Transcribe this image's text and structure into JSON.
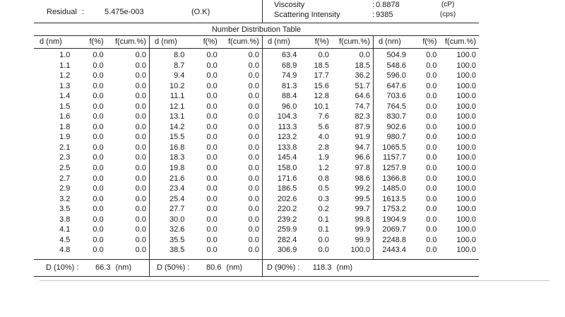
{
  "top": {
    "residual": {
      "label": "Residual",
      "colon": ":",
      "value": "5.475e-003",
      "status": "(O.K)"
    },
    "viscosity": {
      "label": "Viscosity",
      "colon": ":",
      "value": "0.8878",
      "unit": "(cP)"
    },
    "scattering": {
      "label": "Scattering Intensity",
      "colon": ":",
      "value": "9385",
      "unit": "(cps)"
    }
  },
  "table": {
    "title": "Number Distribution Table",
    "column_headers": [
      "d (nm)",
      "f(%)",
      "f(cum.%)"
    ],
    "groups": [
      {
        "rows": [
          [
            "1.0",
            "0.0",
            "0.0"
          ],
          [
            "1.1",
            "0.0",
            "0.0"
          ],
          [
            "1.2",
            "0.0",
            "0.0"
          ],
          [
            "1.3",
            "0.0",
            "0.0"
          ],
          [
            "1.4",
            "0.0",
            "0.0"
          ],
          [
            "1.5",
            "0.0",
            "0.0"
          ],
          [
            "1.6",
            "0.0",
            "0.0"
          ],
          [
            "1.8",
            "0.0",
            "0.0"
          ],
          [
            "1.9",
            "0.0",
            "0.0"
          ],
          [
            "2.1",
            "0.0",
            "0.0"
          ],
          [
            "2.3",
            "0.0",
            "0.0"
          ],
          [
            "2.5",
            "0.0",
            "0.0"
          ],
          [
            "2.7",
            "0.0",
            "0.0"
          ],
          [
            "2.9",
            "0.0",
            "0.0"
          ],
          [
            "3.2",
            "0.0",
            "0.0"
          ],
          [
            "3.5",
            "0.0",
            "0.0"
          ],
          [
            "3.8",
            "0.0",
            "0.0"
          ],
          [
            "4.1",
            "0.0",
            "0.0"
          ],
          [
            "4.5",
            "0.0",
            "0.0"
          ],
          [
            "4.8",
            "0.0",
            "0.0"
          ]
        ]
      },
      {
        "rows": [
          [
            "8.0",
            "0.0",
            "0.0"
          ],
          [
            "8.7",
            "0.0",
            "0.0"
          ],
          [
            "9.4",
            "0.0",
            "0.0"
          ],
          [
            "10.2",
            "0.0",
            "0.0"
          ],
          [
            "11.1",
            "0.0",
            "0.0"
          ],
          [
            "12.1",
            "0.0",
            "0.0"
          ],
          [
            "13.1",
            "0.0",
            "0.0"
          ],
          [
            "14.2",
            "0.0",
            "0.0"
          ],
          [
            "15.5",
            "0.0",
            "0.0"
          ],
          [
            "16.8",
            "0.0",
            "0.0"
          ],
          [
            "18.3",
            "0.0",
            "0.0"
          ],
          [
            "19.8",
            "0.0",
            "0.0"
          ],
          [
            "21.6",
            "0.0",
            "0.0"
          ],
          [
            "23.4",
            "0.0",
            "0.0"
          ],
          [
            "25.4",
            "0.0",
            "0.0"
          ],
          [
            "27.7",
            "0.0",
            "0.0"
          ],
          [
            "30.0",
            "0.0",
            "0.0"
          ],
          [
            "32.6",
            "0.0",
            "0.0"
          ],
          [
            "35.5",
            "0.0",
            "0.0"
          ],
          [
            "38.5",
            "0.0",
            "0.0"
          ]
        ]
      },
      {
        "rows": [
          [
            "63.4",
            "0.0",
            "0.0"
          ],
          [
            "68.9",
            "18.5",
            "18.5"
          ],
          [
            "74.9",
            "17.7",
            "36.2"
          ],
          [
            "81.3",
            "15.6",
            "51.7"
          ],
          [
            "88.4",
            "12.8",
            "64.6"
          ],
          [
            "96.0",
            "10.1",
            "74.7"
          ],
          [
            "104.3",
            "7.6",
            "82.3"
          ],
          [
            "113.3",
            "5.6",
            "87.9"
          ],
          [
            "123.2",
            "4.0",
            "91.9"
          ],
          [
            "133.8",
            "2.8",
            "94.7"
          ],
          [
            "145.4",
            "1.9",
            "96.6"
          ],
          [
            "158.0",
            "1.2",
            "97.8"
          ],
          [
            "171.6",
            "0.8",
            "98.6"
          ],
          [
            "186.5",
            "0.5",
            "99.2"
          ],
          [
            "202.6",
            "0.3",
            "99.5"
          ],
          [
            "220.2",
            "0.2",
            "99.7"
          ],
          [
            "239.2",
            "0.1",
            "99.8"
          ],
          [
            "259.9",
            "0.1",
            "99.9"
          ],
          [
            "282.4",
            "0.0",
            "99.9"
          ],
          [
            "306.9",
            "0.0",
            "100.0"
          ]
        ]
      },
      {
        "rows": [
          [
            "504.9",
            "0.0",
            "100.0"
          ],
          [
            "548.6",
            "0.0",
            "100.0"
          ],
          [
            "596.0",
            "0.0",
            "100.0"
          ],
          [
            "647.6",
            "0.0",
            "100.0"
          ],
          [
            "703.6",
            "0.0",
            "100.0"
          ],
          [
            "764.5",
            "0.0",
            "100.0"
          ],
          [
            "830.7",
            "0.0",
            "100.0"
          ],
          [
            "902.6",
            "0.0",
            "100.0"
          ],
          [
            "980.7",
            "0.0",
            "100.0"
          ],
          [
            "1065.5",
            "0.0",
            "100.0"
          ],
          [
            "1157.7",
            "0.0",
            "100.0"
          ],
          [
            "1257.9",
            "0.0",
            "100.0"
          ],
          [
            "1366.8",
            "0.0",
            "100.0"
          ],
          [
            "1485.0",
            "0.0",
            "100.0"
          ],
          [
            "1613.5",
            "0.0",
            "100.0"
          ],
          [
            "1753.2",
            "0.0",
            "100.0"
          ],
          [
            "1904.9",
            "0.0",
            "100.0"
          ],
          [
            "2069.7",
            "0.0",
            "100.0"
          ],
          [
            "2248.8",
            "0.0",
            "100.0"
          ],
          [
            "2443.4",
            "0.0",
            "100.0"
          ]
        ]
      }
    ]
  },
  "summary": [
    {
      "label": "D (10%) :",
      "value": "66.3",
      "unit": "(nm)"
    },
    {
      "label": "D (50%) :",
      "value": "80.6",
      "unit": "(nm)"
    },
    {
      "label": "D (90%) :",
      "value": "118.3",
      "unit": "(nm)"
    }
  ]
}
